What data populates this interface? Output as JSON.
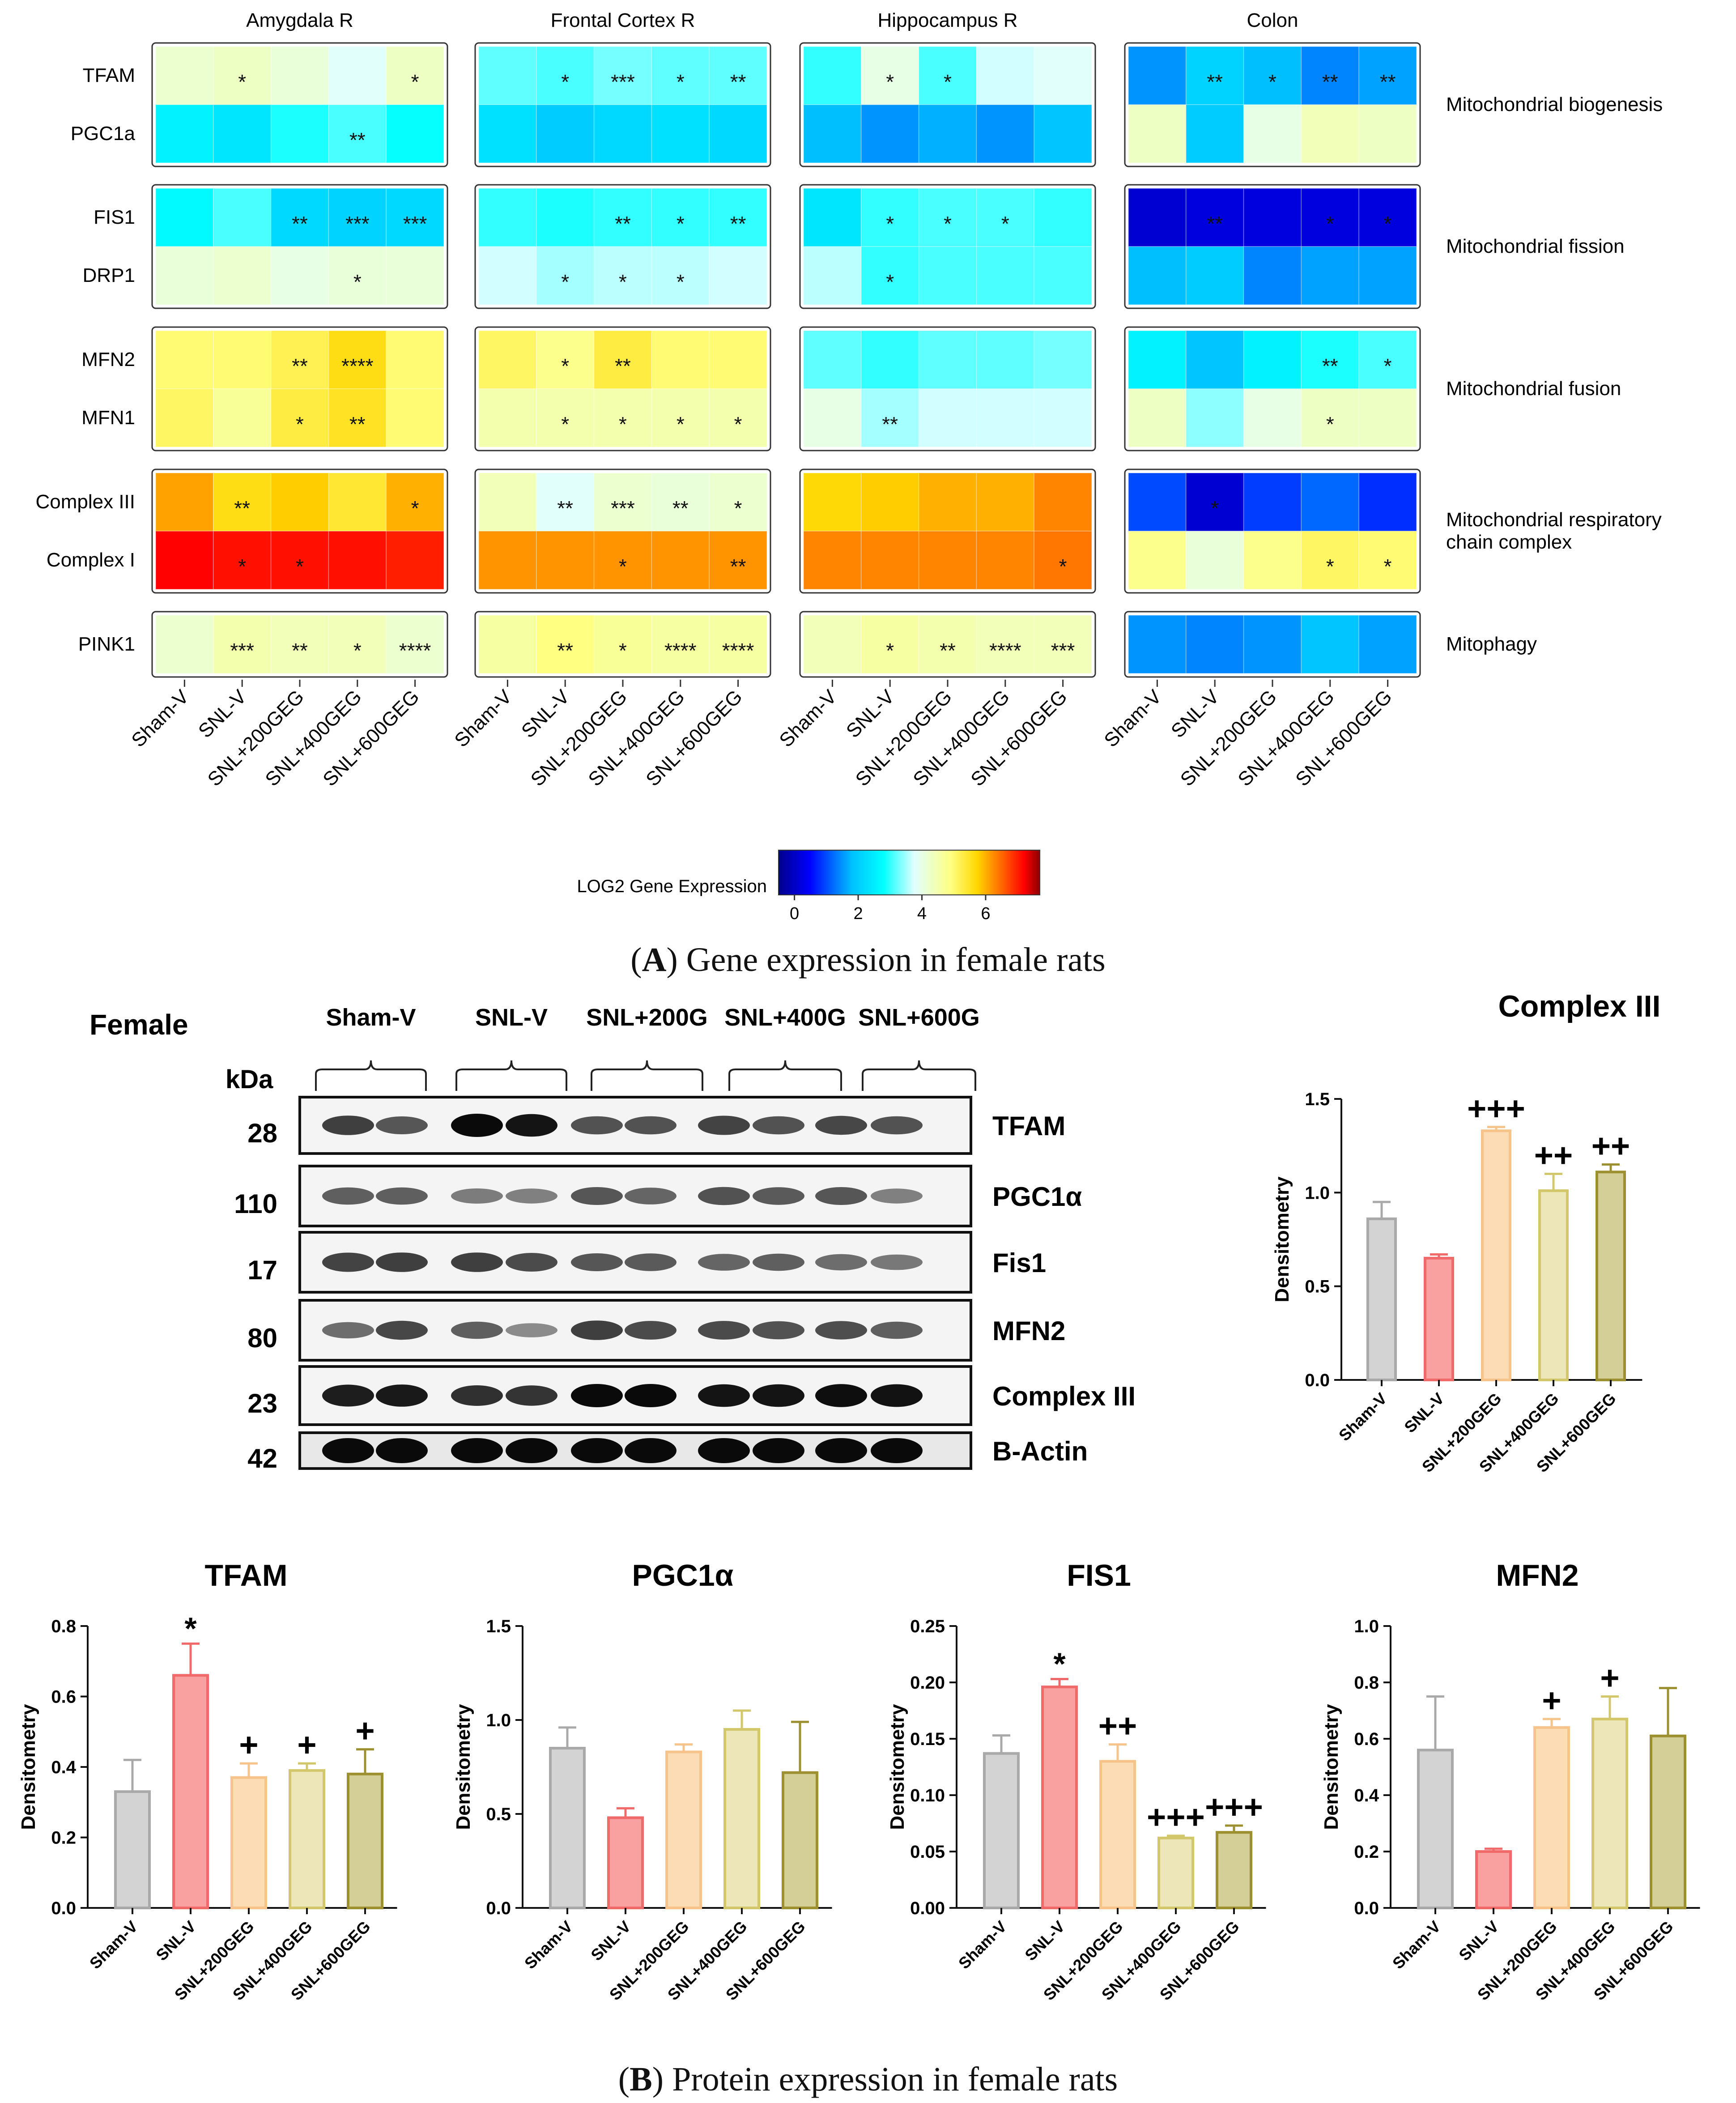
{
  "heatmap": {
    "regions": [
      "Amygdala R",
      "Frontal Cortex R",
      "Hippocampus R",
      "Colon"
    ],
    "groups": [
      "Sham-V",
      "SNL-V",
      "SNL+200GEG",
      "SNL+400GEG",
      "SNL+600GEG"
    ],
    "blocks": [
      {
        "label": "Mitochondrial biogenesis",
        "genes": [
          "TFAM",
          "PGC1a"
        ]
      },
      {
        "label": "Mitochondrial fission",
        "genes": [
          "FIS1",
          "DRP1"
        ]
      },
      {
        "label": "Mitochondrial fusion",
        "genes": [
          "MFN2",
          "MFN1"
        ]
      },
      {
        "label": "Mitochondrial respiratory\nchain complex",
        "genes": [
          "Complex III",
          "Complex I"
        ]
      },
      {
        "label": "Mitophagy",
        "genes": [
          "PINK1"
        ]
      }
    ],
    "values": {
      "Amygdala R": {
        "TFAM": [
          4.2,
          4.3,
          4.1,
          3.8,
          4.3
        ],
        "PGC1a": [
          2.6,
          2.4,
          2.9,
          3.1,
          2.8
        ],
        "FIS1": [
          2.7,
          3.1,
          2.2,
          2.1,
          2.2
        ],
        "DRP1": [
          4.1,
          4.2,
          4.0,
          4.1,
          4.1
        ],
        "MFN2": [
          5.0,
          5.0,
          5.2,
          5.6,
          5.0
        ],
        "MFN1": [
          5.1,
          4.7,
          5.3,
          5.5,
          5.0
        ],
        "Complex III": [
          6.1,
          5.6,
          5.8,
          5.4,
          6.0
        ],
        "Complex I": [
          7.2,
          7.1,
          7.1,
          7.1,
          7.0
        ],
        "PINK1": [
          4.2,
          4.5,
          4.4,
          4.4,
          4.2
        ]
      },
      "Frontal Cortex R": {
        "TFAM": [
          3.2,
          3.1,
          3.3,
          3.2,
          3.2
        ],
        "PGC1a": [
          2.3,
          2.0,
          2.2,
          2.3,
          2.2
        ],
        "FIS1": [
          3.0,
          2.9,
          3.0,
          3.0,
          3.0
        ],
        "DRP1": [
          3.7,
          3.5,
          3.6,
          3.6,
          3.7
        ],
        "MFN2": [
          5.1,
          4.8,
          5.3,
          5.0,
          5.0
        ],
        "MFN1": [
          4.5,
          4.5,
          4.5,
          4.5,
          4.5
        ],
        "Complex III": [
          4.4,
          3.8,
          4.2,
          4.1,
          4.2
        ],
        "Complex I": [
          6.2,
          6.2,
          6.2,
          6.2,
          6.2
        ],
        "PINK1": [
          4.6,
          4.9,
          4.7,
          4.6,
          4.6
        ]
      },
      "Hippocampus R": {
        "TFAM": [
          3.0,
          4.0,
          3.1,
          3.7,
          3.8
        ],
        "PGC1a": [
          1.8,
          1.5,
          1.7,
          1.5,
          1.9
        ],
        "FIS1": [
          2.4,
          3.0,
          3.1,
          3.1,
          3.0
        ],
        "DRP1": [
          3.6,
          3.0,
          3.1,
          3.1,
          3.1
        ],
        "MFN2": [
          3.2,
          3.0,
          3.2,
          3.2,
          3.3
        ],
        "MFN1": [
          4.0,
          3.5,
          3.7,
          3.7,
          3.7
        ],
        "Complex III": [
          5.7,
          5.8,
          6.0,
          6.0,
          6.3
        ],
        "Complex I": [
          6.3,
          6.3,
          6.3,
          6.3,
          6.4
        ],
        "PINK1": [
          4.4,
          4.6,
          4.5,
          4.4,
          4.4
        ]
      },
      "Colon": {
        "TFAM": [
          1.5,
          2.1,
          1.8,
          1.4,
          1.6
        ],
        "PGC1a": [
          4.3,
          2.0,
          4.0,
          4.4,
          4.3
        ],
        "FIS1": [
          0.1,
          0.2,
          0.2,
          0.2,
          0.2
        ],
        "DRP1": [
          1.8,
          2.0,
          1.4,
          1.6,
          1.6
        ],
        "MFN2": [
          2.6,
          1.9,
          2.6,
          2.9,
          3.1
        ],
        "MFN1": [
          4.3,
          3.4,
          4.0,
          4.3,
          4.3
        ],
        "Complex III": [
          1.0,
          0.1,
          0.9,
          1.2,
          0.8
        ],
        "Complex I": [
          4.8,
          4.1,
          4.8,
          5.1,
          5.0
        ],
        "PINK1": [
          1.5,
          1.4,
          1.5,
          1.9,
          1.6
        ]
      }
    },
    "stars": {
      "Amygdala R": {
        "TFAM": [
          "",
          "*",
          "",
          "",
          "*"
        ],
        "PGC1a": [
          "",
          "",
          "",
          "**",
          ""
        ],
        "FIS1": [
          "",
          "",
          "**",
          "***",
          "***"
        ],
        "DRP1": [
          "",
          "",
          "",
          "*",
          ""
        ],
        "MFN2": [
          "",
          "",
          "**",
          "****",
          ""
        ],
        "MFN1": [
          "",
          "",
          "*",
          "**",
          ""
        ],
        "Complex III": [
          "",
          "**",
          "",
          "",
          "*"
        ],
        "Complex I": [
          "",
          "*",
          "*",
          "",
          ""
        ],
        "PINK1": [
          "",
          "***",
          "**",
          "*",
          "****"
        ]
      },
      "Frontal Cortex R": {
        "TFAM": [
          "",
          "*",
          "***",
          "*",
          "**"
        ],
        "PGC1a": [
          "",
          "",
          "",
          "",
          ""
        ],
        "FIS1": [
          "",
          "",
          "**",
          "*",
          "**"
        ],
        "DRP1": [
          "",
          "*",
          "*",
          "*",
          ""
        ],
        "MFN2": [
          "",
          "*",
          "**",
          "",
          ""
        ],
        "MFN1": [
          "",
          "*",
          "*",
          "*",
          "*"
        ],
        "Complex III": [
          "",
          "**",
          "***",
          "**",
          "*"
        ],
        "Complex I": [
          "",
          "",
          "*",
          "",
          "**"
        ],
        "PINK1": [
          "",
          "**",
          "*",
          "****",
          "****"
        ]
      },
      "Hippocampus R": {
        "TFAM": [
          "",
          "*",
          "*",
          "",
          ""
        ],
        "PGC1a": [
          "",
          "",
          "",
          "",
          ""
        ],
        "FIS1": [
          "",
          "*",
          "*",
          "*",
          ""
        ],
        "DRP1": [
          "",
          "*",
          "",
          "",
          ""
        ],
        "MFN2": [
          "",
          "",
          "",
          "",
          ""
        ],
        "MFN1": [
          "",
          "**",
          "",
          "",
          ""
        ],
        "Complex III": [
          "",
          "",
          "",
          "",
          ""
        ],
        "Complex I": [
          "",
          "",
          "",
          "",
          "*"
        ],
        "PINK1": [
          "",
          "*",
          "**",
          "****",
          "***"
        ]
      },
      "Colon": {
        "TFAM": [
          "",
          "**",
          "*",
          "**",
          "**"
        ],
        "PGC1a": [
          "",
          "",
          "",
          "",
          ""
        ],
        "FIS1": [
          "",
          "**",
          "",
          "*",
          "*"
        ],
        "DRP1": [
          "",
          "",
          "",
          "",
          ""
        ],
        "MFN2": [
          "",
          "",
          "",
          "**",
          "*"
        ],
        "MFN1": [
          "",
          "",
          "",
          "*",
          ""
        ],
        "Complex III": [
          "",
          "*",
          "",
          "",
          ""
        ],
        "Complex I": [
          "",
          "",
          "",
          "*",
          "*"
        ],
        "PINK1": [
          "",
          "",
          "",
          "",
          ""
        ]
      }
    },
    "colorbar": {
      "label": "LOG2 Gene Expression",
      "ticks": [
        "0",
        "2",
        "4",
        "6"
      ],
      "range": [
        -0.5,
        7.7
      ]
    },
    "caption_letter": "A",
    "caption_text": " Gene expression in female rats"
  },
  "blot": {
    "sex_label": "Female",
    "kda_label": "kDa",
    "group_labels": [
      "Sham-V",
      "SNL-V",
      "SNL+200G",
      "SNL+400G",
      "SNL+600G"
    ],
    "proteins": [
      "TFAM",
      "PGC1α",
      "Fis1",
      "MFN2",
      "Complex III",
      "B-Actin"
    ],
    "kda": [
      "28",
      "110",
      "17",
      "80",
      "23",
      "42"
    ]
  },
  "chart_data": [
    {
      "type": "bar",
      "title": "Complex III",
      "ylabel": "Densitometry",
      "categories": [
        "Sham-V",
        "SNL-V",
        "SNL+200GEG",
        "SNL+400GEG",
        "SNL+600GEG"
      ],
      "values": [
        0.86,
        0.65,
        1.33,
        1.01,
        1.11
      ],
      "errors": [
        0.09,
        0.02,
        0.02,
        0.09,
        0.04
      ],
      "annotations": [
        "",
        "",
        "+++",
        "++",
        "++"
      ],
      "ylim": [
        0,
        1.5
      ],
      "yticks": [
        "0.0",
        "0.5",
        "1.0",
        "1.5"
      ]
    },
    {
      "type": "bar",
      "title": "TFAM",
      "ylabel": "Densitometry",
      "categories": [
        "Sham-V",
        "SNL-V",
        "SNL+200GEG",
        "SNL+400GEG",
        "SNL+600GEG"
      ],
      "values": [
        0.33,
        0.66,
        0.37,
        0.39,
        0.38
      ],
      "errors": [
        0.09,
        0.09,
        0.04,
        0.02,
        0.07
      ],
      "annotations": [
        "",
        "*",
        "+",
        "+",
        "+"
      ],
      "ylim": [
        0,
        0.8
      ],
      "yticks": [
        "0.0",
        "0.2",
        "0.4",
        "0.6",
        "0.8"
      ]
    },
    {
      "type": "bar",
      "title": "PGC1α",
      "ylabel": "Densitometry",
      "categories": [
        "Sham-V",
        "SNL-V",
        "SNL+200GEG",
        "SNL+400GEG",
        "SNL+600GEG"
      ],
      "values": [
        0.85,
        0.48,
        0.83,
        0.95,
        0.72
      ],
      "errors": [
        0.11,
        0.05,
        0.04,
        0.1,
        0.27
      ],
      "annotations": [
        "",
        "",
        "",
        "",
        ""
      ],
      "ylim": [
        0,
        1.5
      ],
      "yticks": [
        "0.0",
        "0.5",
        "1.0",
        "1.5"
      ]
    },
    {
      "type": "bar",
      "title": "FIS1",
      "ylabel": "Densitometry",
      "categories": [
        "Sham-V",
        "SNL-V",
        "SNL+200GEG",
        "SNL+400GEG",
        "SNL+600GEG"
      ],
      "values": [
        0.137,
        0.196,
        0.13,
        0.062,
        0.067
      ],
      "errors": [
        0.016,
        0.007,
        0.015,
        0.002,
        0.006
      ],
      "annotations": [
        "",
        "*",
        "++",
        "+++",
        "+++"
      ],
      "ylim": [
        0,
        0.25
      ],
      "yticks": [
        "0.00",
        "0.05",
        "0.10",
        "0.15",
        "0.20",
        "0.25"
      ]
    },
    {
      "type": "bar",
      "title": "MFN2",
      "ylabel": "Densitometry",
      "categories": [
        "Sham-V",
        "SNL-V",
        "SNL+200GEG",
        "SNL+400GEG",
        "SNL+600GEG"
      ],
      "values": [
        0.56,
        0.2,
        0.64,
        0.67,
        0.61
      ],
      "errors": [
        0.19,
        0.01,
        0.03,
        0.08,
        0.17
      ],
      "annotations": [
        "",
        "",
        "+",
        "+",
        ""
      ],
      "ylim": [
        0,
        1.0
      ],
      "yticks": [
        "0.0",
        "0.2",
        "0.4",
        "0.6",
        "0.8",
        "1.0"
      ]
    }
  ],
  "bar_colors": {
    "fill": [
      "#d3d3d3",
      "#f9a0a0",
      "#fbdcb4",
      "#ece6b8",
      "#d3cf96"
    ],
    "stroke": [
      "#a9a9a9",
      "#f06a6a",
      "#f6c48a",
      "#d2c76a",
      "#9c9030"
    ]
  },
  "caption_b_letter": "B",
  "caption_b_text": " Protein expression in female rats"
}
